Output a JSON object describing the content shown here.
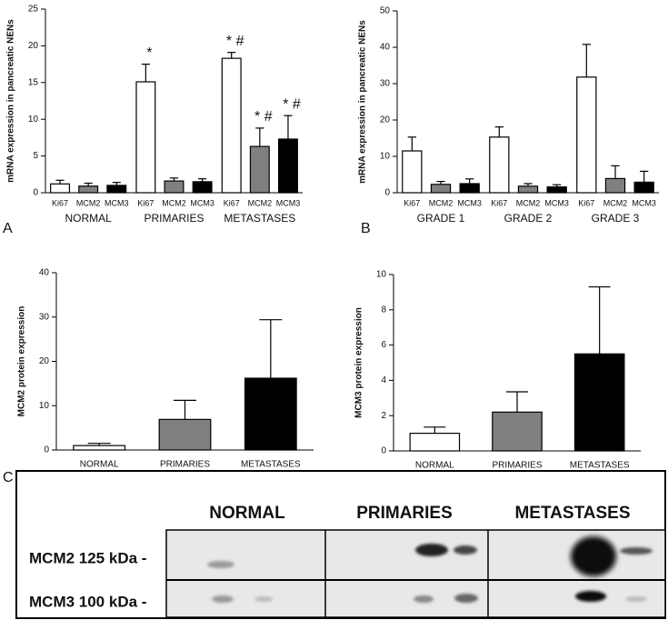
{
  "panel_labels": [
    "A",
    "B",
    "C"
  ],
  "blot": {
    "columns": [
      "NORMAL",
      "PRIMARIES",
      "METASTASES"
    ],
    "rows": [
      "MCM2 125 kDa -",
      "MCM3 100 kDa -"
    ]
  },
  "chart_data": [
    {
      "type": "bar",
      "y_label": "mRNA expression in pancreatic NENs",
      "categories": [
        "NORMAL",
        "PRIMARIES",
        "METASTASES"
      ],
      "series": [
        {
          "name": "Ki67",
          "color": "#ffffff",
          "values": [
            1.2,
            15.1,
            18.3
          ],
          "errors": [
            0.5,
            2.4,
            0.8
          ],
          "annotations": [
            null,
            "*",
            "* #"
          ]
        },
        {
          "name": "MCM2",
          "color": "#808080",
          "values": [
            0.9,
            1.6,
            6.3
          ],
          "errors": [
            0.4,
            0.4,
            2.5
          ],
          "annotations": [
            null,
            null,
            "* #"
          ]
        },
        {
          "name": "MCM3",
          "color": "#000000",
          "values": [
            1.0,
            1.5,
            7.3
          ],
          "errors": [
            0.4,
            0.4,
            3.2
          ],
          "annotations": [
            null,
            null,
            "* #"
          ]
        }
      ],
      "ylim": [
        0,
        25
      ],
      "yticks": [
        0,
        5,
        10,
        15,
        20,
        25
      ]
    },
    {
      "type": "bar",
      "y_label": "mRNA expression in pancreatic NENs",
      "categories": [
        "GRADE 1",
        "GRADE 2",
        "GRADE 3"
      ],
      "series": [
        {
          "name": "Ki67",
          "color": "#ffffff",
          "values": [
            11.5,
            15.3,
            31.8
          ],
          "errors": [
            3.8,
            2.8,
            9.0
          ]
        },
        {
          "name": "MCM2",
          "color": "#808080",
          "values": [
            2.3,
            1.8,
            3.9
          ],
          "errors": [
            0.8,
            0.7,
            3.5
          ]
        },
        {
          "name": "MCM3",
          "color": "#000000",
          "values": [
            2.5,
            1.6,
            2.9
          ],
          "errors": [
            1.3,
            0.6,
            3.0
          ]
        }
      ],
      "ylim": [
        0,
        50
      ],
      "yticks": [
        0,
        10,
        20,
        30,
        40,
        50
      ]
    },
    {
      "type": "bar",
      "y_label": "MCM2 protein expression",
      "categories": [
        "NORMAL",
        "PRIMARIES",
        "METASTASES"
      ],
      "values": [
        1.0,
        6.9,
        16.2
      ],
      "errors": [
        0.5,
        4.3,
        13.2
      ],
      "colors": [
        "#ffffff",
        "#808080",
        "#000000"
      ],
      "ylim": [
        0,
        40
      ],
      "yticks": [
        0,
        10,
        20,
        30,
        40
      ]
    },
    {
      "type": "bar",
      "y_label": "MCM3 protein expression",
      "categories": [
        "NORMAL",
        "PRIMARIES",
        "METASTASES"
      ],
      "values": [
        1.0,
        2.2,
        5.5
      ],
      "errors": [
        0.35,
        1.15,
        3.8
      ],
      "colors": [
        "#ffffff",
        "#808080",
        "#000000"
      ],
      "ylim": [
        0,
        10
      ],
      "yticks": [
        0,
        2,
        4,
        6,
        8,
        10
      ]
    }
  ]
}
